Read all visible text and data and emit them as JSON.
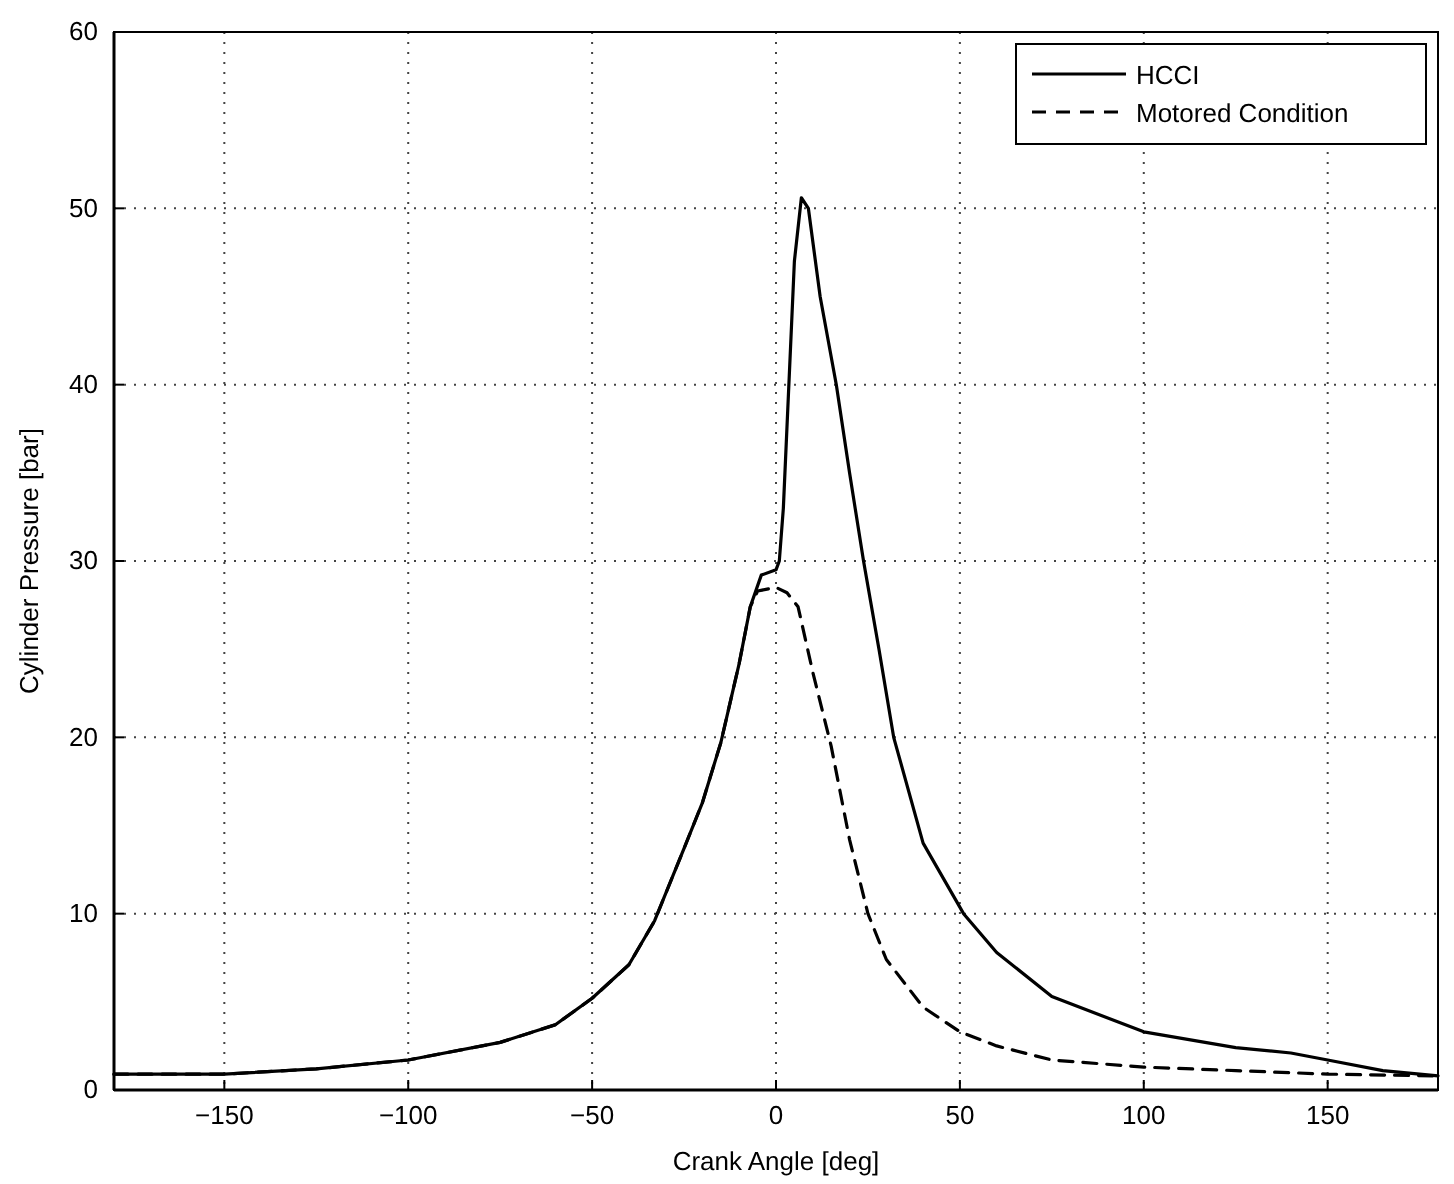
{
  "chart_data": {
    "type": "line",
    "xlabel": "Crank Angle [deg]",
    "ylabel": "Cylinder Pressure [bar]",
    "xlim": [
      -180,
      180
    ],
    "xticks": [
      -150,
      -100,
      -50,
      0,
      50,
      100,
      150
    ],
    "ylim": [
      0,
      60
    ],
    "yticks": [
      0,
      10,
      20,
      30,
      40,
      50,
      60
    ],
    "grid": true,
    "legend": "top right",
    "marker": "none",
    "series": [
      {
        "name": "HCCI",
        "color": "#000000",
        "line_style": "solid",
        "x": [
          -180,
          -150,
          -125,
          -100,
          -75,
          -60,
          -50,
          -40,
          -33,
          -25,
          -20,
          -15,
          -10,
          -7,
          -4,
          0,
          0.9,
          2,
          3.5,
          5,
          6.9,
          8.8,
          12,
          16.4,
          20,
          23.8,
          28,
          32,
          40,
          51,
          60,
          75,
          100,
          125,
          140,
          150,
          165,
          180
        ],
        "values": [
          0.9,
          0.9,
          1.2,
          1.7,
          2.7,
          3.7,
          5.2,
          7.1,
          9.6,
          13.7,
          16.3,
          19.7,
          24.2,
          27.4,
          29.2,
          29.5,
          30,
          33,
          40,
          47,
          50.6,
          50,
          45,
          40,
          35,
          30,
          25,
          20,
          14,
          10,
          7.8,
          5.3,
          3.3,
          2.4,
          2.1,
          1.7,
          1.1,
          0.8
        ]
      },
      {
        "name": "Motored Condition",
        "color": "#000000",
        "line_style": "dashed",
        "x": [
          -180,
          -150,
          -125,
          -100,
          -75,
          -60,
          -50,
          -40,
          -33,
          -25,
          -20,
          -15,
          -10,
          -7,
          -5,
          0,
          3,
          6,
          10,
          15,
          20,
          25,
          30,
          40,
          50,
          60,
          75,
          100,
          125,
          150,
          180
        ],
        "values": [
          0.9,
          0.9,
          1.2,
          1.7,
          2.7,
          3.7,
          5.2,
          7.1,
          9.6,
          13.7,
          16.3,
          19.7,
          24.2,
          27.4,
          28.3,
          28.5,
          28.2,
          27.4,
          23.7,
          19.5,
          14.2,
          10,
          7.4,
          4.7,
          3.3,
          2.5,
          1.7,
          1.3,
          1.1,
          0.9,
          0.8
        ]
      }
    ]
  }
}
